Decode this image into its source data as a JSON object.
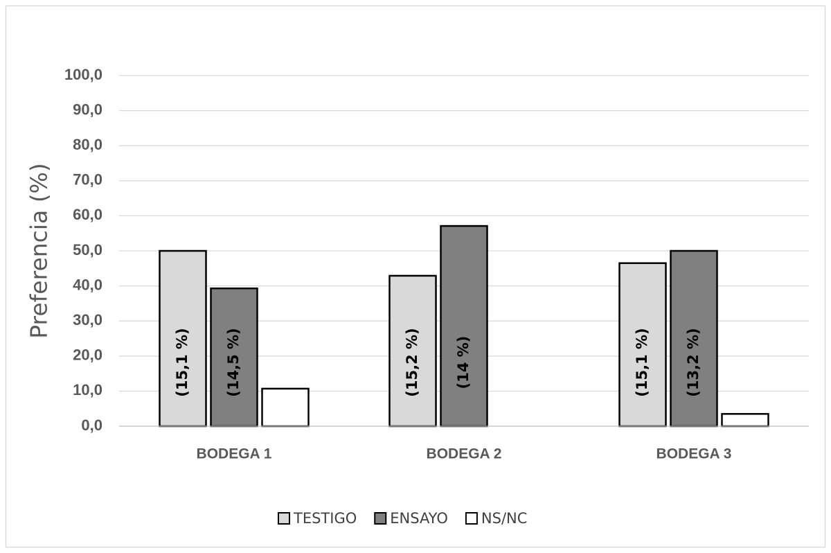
{
  "chart_data": {
    "type": "bar",
    "ylabel": "Preferencia (%)",
    "xlabel": "",
    "ylim": [
      0,
      100
    ],
    "y_ticks": [
      "0,0",
      "10,0",
      "20,0",
      "30,0",
      "40,0",
      "50,0",
      "60,0",
      "70,0",
      "80,0",
      "90,0",
      "100,0"
    ],
    "categories": [
      "BODEGA 1",
      "BODEGA 2",
      "BODEGA 3"
    ],
    "grid": true,
    "legend_position": "bottom",
    "series": [
      {
        "name": "TESTIGO",
        "color": "#d9d9d9",
        "values": [
          50.0,
          42.9,
          46.5
        ],
        "labels": [
          "(15,1 %)",
          "(15,2 %)",
          "(15,1 %)"
        ]
      },
      {
        "name": "ENSAYO",
        "color": "#808080",
        "values": [
          39.3,
          57.1,
          50.0
        ],
        "labels": [
          "(14,5 %)",
          "(14 %)",
          "(13,2 %)"
        ]
      },
      {
        "name": "NS/NC",
        "color": "#ffffff",
        "values": [
          10.7,
          0.0,
          3.5
        ],
        "labels": [
          "",
          "",
          ""
        ]
      }
    ]
  }
}
